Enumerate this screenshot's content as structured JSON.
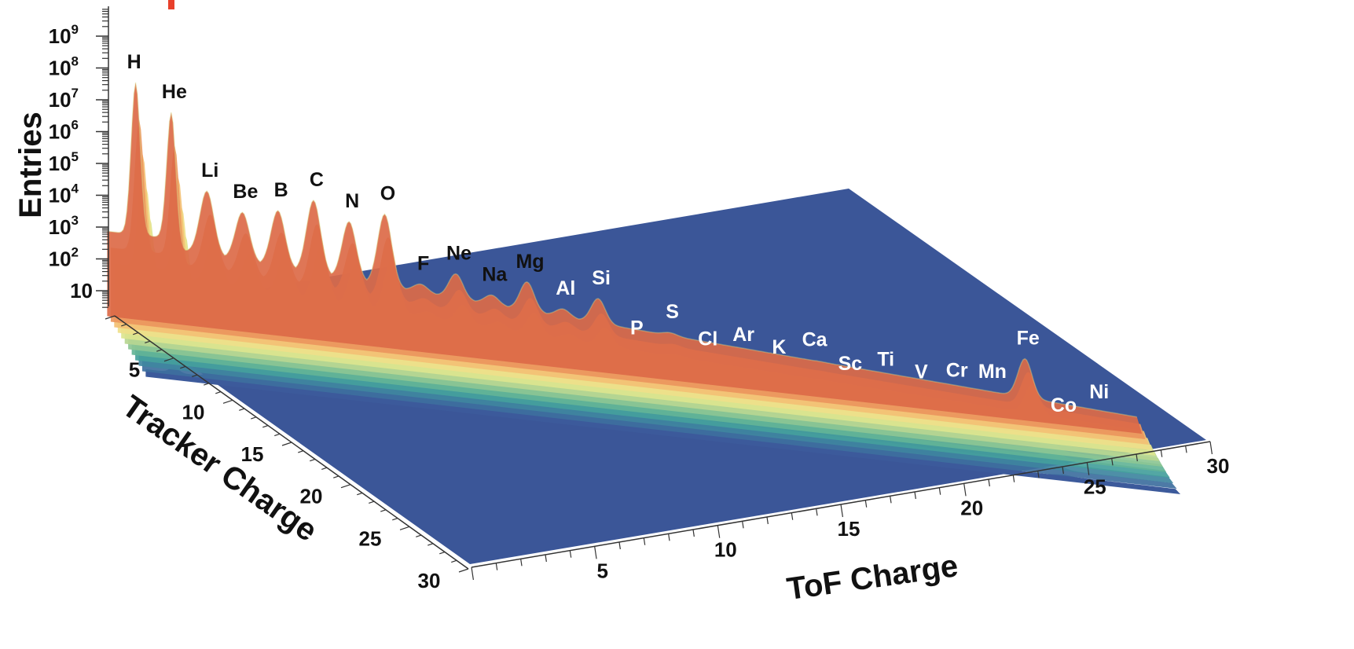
{
  "chart_data": {
    "type": "surface",
    "zlabel": "Entries",
    "xlabel": "ToF Charge",
    "ylabel": "Tracker Charge",
    "zscale": "log",
    "z_ticks": [
      {
        "base": "10",
        "exp": ""
      },
      {
        "base": "10",
        "exp": "2"
      },
      {
        "base": "10",
        "exp": "3"
      },
      {
        "base": "10",
        "exp": "4"
      },
      {
        "base": "10",
        "exp": "5"
      },
      {
        "base": "10",
        "exp": "6"
      },
      {
        "base": "10",
        "exp": "7"
      },
      {
        "base": "10",
        "exp": "8"
      },
      {
        "base": "10",
        "exp": "9"
      }
    ],
    "z_tick_values": [
      1,
      2,
      3,
      4,
      5,
      6,
      7,
      8,
      9
    ],
    "x_ticks": [
      "5",
      "10",
      "15",
      "20",
      "25",
      "30"
    ],
    "x_tick_values": [
      5,
      10,
      15,
      20,
      25,
      30
    ],
    "y_ticks": [
      "5",
      "10",
      "15",
      "20",
      "25",
      "30"
    ],
    "y_tick_values": [
      5,
      10,
      15,
      20,
      25,
      30
    ],
    "xlim": [
      0,
      30
    ],
    "ylim": [
      0,
      30
    ],
    "zlim": [
      0,
      9.5
    ],
    "colors": {
      "floor": "#3b5698",
      "low": "#3f5c9a",
      "mid": "#3ea79a",
      "high": "#e6e88b",
      "peak": "#b8332a",
      "label_dark": "#111111",
      "label_light": "#ffffff"
    },
    "peaks": [
      {
        "element": "H",
        "charge": 1,
        "log10_entries": 8.9
      },
      {
        "element": "He",
        "charge": 2,
        "log10_entries": 8.0
      },
      {
        "element": "Li",
        "charge": 3,
        "log10_entries": 5.4
      },
      {
        "element": "Be",
        "charge": 4,
        "log10_entries": 4.8
      },
      {
        "element": "B",
        "charge": 5,
        "log10_entries": 5.0
      },
      {
        "element": "C",
        "charge": 6,
        "log10_entries": 5.5
      },
      {
        "element": "N",
        "charge": 7,
        "log10_entries": 4.9
      },
      {
        "element": "O",
        "charge": 8,
        "log10_entries": 5.3
      },
      {
        "element": "F",
        "charge": 9,
        "log10_entries": 3.0
      },
      {
        "element": "Ne",
        "charge": 10,
        "log10_entries": 3.5
      },
      {
        "element": "Na",
        "charge": 11,
        "log10_entries": 2.9
      },
      {
        "element": "Mg",
        "charge": 12,
        "log10_entries": 3.5
      },
      {
        "element": "Al",
        "charge": 13,
        "log10_entries": 2.7
      },
      {
        "element": "Si",
        "charge": 14,
        "log10_entries": 3.2
      },
      {
        "element": "P",
        "charge": 15,
        "log10_entries": 1.6
      },
      {
        "element": "S",
        "charge": 16,
        "log10_entries": 2.3
      },
      {
        "element": "Cl",
        "charge": 17,
        "log10_entries": 1.5
      },
      {
        "element": "Ar",
        "charge": 18,
        "log10_entries": 1.8
      },
      {
        "element": "K",
        "charge": 19,
        "log10_entries": 1.5
      },
      {
        "element": "Ca",
        "charge": 20,
        "log10_entries": 1.9
      },
      {
        "element": "Sc",
        "charge": 21,
        "log10_entries": 1.2
      },
      {
        "element": "Ti",
        "charge": 22,
        "log10_entries": 1.5
      },
      {
        "element": "V",
        "charge": 23,
        "log10_entries": 1.2
      },
      {
        "element": "Cr",
        "charge": 24,
        "log10_entries": 1.4
      },
      {
        "element": "Mn",
        "charge": 25,
        "log10_entries": 1.5
      },
      {
        "element": "Fe",
        "charge": 26,
        "log10_entries": 2.8
      },
      {
        "element": "Co",
        "charge": 27,
        "log10_entries": 0.6
      },
      {
        "element": "Ni",
        "charge": 28,
        "log10_entries": 1.2
      }
    ]
  }
}
